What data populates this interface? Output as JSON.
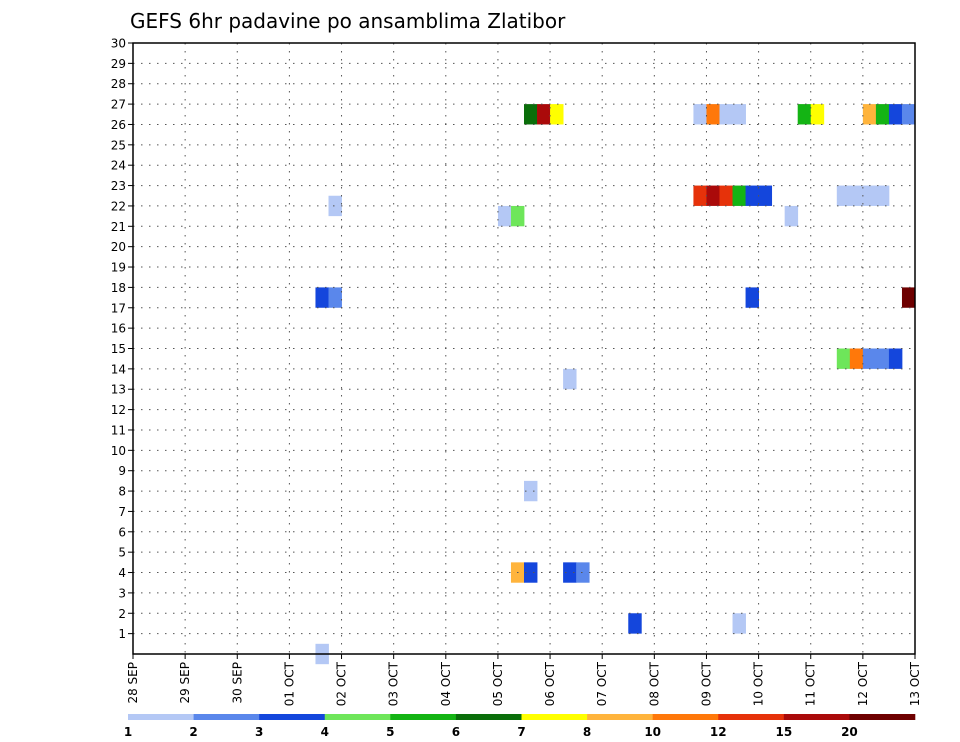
{
  "chart_data": {
    "type": "heatmap",
    "title": "GEFS 6hr padavine po ansamblima Zlatibor",
    "x_labels": [
      "28 SEP",
      "29 SEP",
      "30 SEP",
      "01 OCT",
      "02 OCT",
      "03 OCT",
      "04 OCT",
      "05 OCT",
      "06 OCT",
      "07 OCT",
      "08 OCT",
      "09 OCT",
      "10 OCT",
      "11 OCT",
      "12 OCT",
      "13 OCT"
    ],
    "ylim": [
      0,
      30
    ],
    "y_ticks": [
      1,
      2,
      3,
      4,
      5,
      6,
      7,
      8,
      9,
      10,
      11,
      12,
      13,
      14,
      15,
      16,
      17,
      18,
      19,
      20,
      21,
      22,
      23,
      24,
      25,
      26,
      27,
      28,
      29,
      30
    ],
    "grid": true,
    "legend": {
      "placement": "bottom",
      "levels": [
        "1",
        "2",
        "3",
        "4",
        "5",
        "6",
        "7",
        "8",
        "10",
        "12",
        "15",
        "20"
      ],
      "colors": [
        "#b4c8f5",
        "#5a87eb",
        "#1446dc",
        "#6ee65a",
        "#14b414",
        "#0a6e0a",
        "#ffff00",
        "#ffb43c",
        "#ff780a",
        "#e6320a",
        "#aa0a0a",
        "#6e0000"
      ]
    },
    "cells": [
      {
        "member": 0,
        "day": 3.5,
        "color": "#b4c8f5"
      },
      {
        "member": 22,
        "day": 3.75,
        "color": "#b4c8f5"
      },
      {
        "member": 17.5,
        "day": 3.5,
        "color": "#1446dc"
      },
      {
        "member": 17.5,
        "day": 3.75,
        "color": "#5a87eb"
      },
      {
        "member": 21.5,
        "day": 7.0,
        "color": "#b4c8f5"
      },
      {
        "member": 21.5,
        "day": 7.25,
        "color": "#6ee65a"
      },
      {
        "member": 26.5,
        "day": 7.5,
        "color": "#0a6e0a"
      },
      {
        "member": 26.5,
        "day": 7.75,
        "color": "#aa0a0a"
      },
      {
        "member": 26.5,
        "day": 8.0,
        "color": "#ffff00"
      },
      {
        "member": 13.5,
        "day": 8.25,
        "color": "#b4c8f5"
      },
      {
        "member": 8,
        "day": 7.5,
        "color": "#b4c8f5"
      },
      {
        "member": 4,
        "day": 7.25,
        "color": "#ffb43c"
      },
      {
        "member": 4,
        "day": 7.5,
        "color": "#1446dc"
      },
      {
        "member": 4,
        "day": 8.25,
        "color": "#1446dc"
      },
      {
        "member": 4,
        "day": 8.5,
        "color": "#5a87eb"
      },
      {
        "member": 1.5,
        "day": 9.5,
        "color": "#1446dc"
      },
      {
        "member": 1.5,
        "day": 11.5,
        "color": "#b4c8f5"
      },
      {
        "member": 26.5,
        "day": 10.75,
        "color": "#b4c8f5"
      },
      {
        "member": 26.5,
        "day": 11.0,
        "color": "#ff780a"
      },
      {
        "member": 26.5,
        "day": 11.25,
        "color": "#b4c8f5"
      },
      {
        "member": 26.5,
        "day": 11.5,
        "color": "#b4c8f5"
      },
      {
        "member": 22.5,
        "day": 10.75,
        "color": "#e6320a"
      },
      {
        "member": 22.5,
        "day": 11.0,
        "color": "#aa0a0a"
      },
      {
        "member": 22.5,
        "day": 11.25,
        "color": "#e6320a"
      },
      {
        "member": 22.5,
        "day": 11.5,
        "color": "#14b414"
      },
      {
        "member": 22.5,
        "day": 11.75,
        "color": "#1446dc"
      },
      {
        "member": 22.5,
        "day": 12.0,
        "color": "#1446dc"
      },
      {
        "member": 17.5,
        "day": 11.75,
        "color": "#1446dc"
      },
      {
        "member": 21.5,
        "day": 12.5,
        "color": "#b4c8f5"
      },
      {
        "member": 26.5,
        "day": 12.75,
        "color": "#14b414"
      },
      {
        "member": 26.5,
        "day": 13.0,
        "color": "#ffff00"
      },
      {
        "member": 22.5,
        "day": 13.5,
        "color": "#b4c8f5"
      },
      {
        "member": 22.5,
        "day": 13.75,
        "color": "#b4c8f5"
      },
      {
        "member": 22.5,
        "day": 14.0,
        "color": "#b4c8f5"
      },
      {
        "member": 22.5,
        "day": 14.25,
        "color": "#b4c8f5"
      },
      {
        "member": 26.5,
        "day": 14.0,
        "color": "#ffb43c"
      },
      {
        "member": 26.5,
        "day": 14.25,
        "color": "#14b414"
      },
      {
        "member": 26.5,
        "day": 14.5,
        "color": "#1446dc"
      },
      {
        "member": 26.5,
        "day": 14.75,
        "color": "#5a87eb"
      },
      {
        "member": 14.5,
        "day": 13.5,
        "color": "#6ee65a"
      },
      {
        "member": 14.5,
        "day": 13.75,
        "color": "#ff780a"
      },
      {
        "member": 14.5,
        "day": 14.0,
        "color": "#5a87eb"
      },
      {
        "member": 14.5,
        "day": 14.25,
        "color": "#5a87eb"
      },
      {
        "member": 14.5,
        "day": 14.5,
        "color": "#1446dc"
      },
      {
        "member": 17.5,
        "day": 14.75,
        "color": "#6e0000"
      }
    ]
  }
}
